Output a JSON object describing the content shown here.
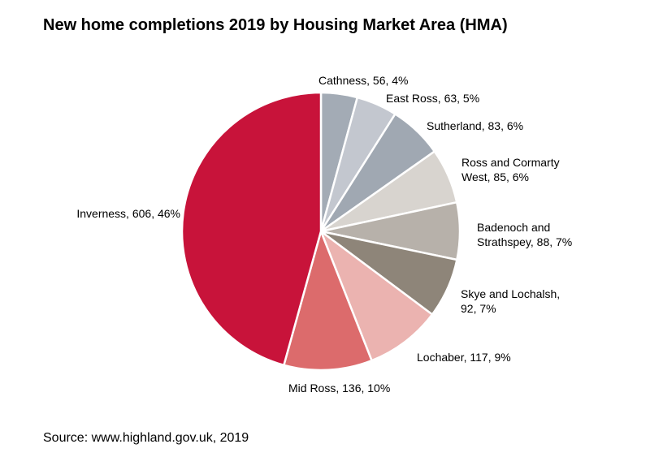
{
  "title": "New home completions 2019 by Housing Market Area (HMA)",
  "source": "Source: www.highland.gov.uk, 2019",
  "chart_data": {
    "type": "pie",
    "title": "New home completions 2019 by Housing Market Area (HMA)",
    "slices": [
      {
        "label": "Cathness",
        "value": 56,
        "percent": "4%",
        "color": "#a3abb5",
        "text": [
          "Cathness, 56, 4%"
        ]
      },
      {
        "label": "East Ross",
        "value": 63,
        "percent": "5%",
        "color": "#c3c7cf",
        "text": [
          "East Ross, 63, 5%"
        ]
      },
      {
        "label": "Sutherland",
        "value": 83,
        "percent": "6%",
        "color": "#a0a8b2",
        "text": [
          "Sutherland, 83, 6%"
        ]
      },
      {
        "label": "Ross and Cormarty West",
        "value": 85,
        "percent": "6%",
        "color": "#d8d4cf",
        "text": [
          "Ross and Cormarty",
          "West, 85, 6%"
        ]
      },
      {
        "label": "Badenoch and Strathspey",
        "value": 88,
        "percent": "7%",
        "color": "#b7b1aa",
        "text": [
          "Badenoch and",
          "Strathspey, 88, 7%"
        ]
      },
      {
        "label": "Skye and Lochalsh",
        "value": 92,
        "percent": "7%",
        "color": "#8e8579",
        "text": [
          "Skye and Lochalsh,",
          "92, 7%"
        ]
      },
      {
        "label": "Lochaber",
        "value": 117,
        "percent": "9%",
        "color": "#ebb3b0",
        "text": [
          "Lochaber, 117, 9%"
        ]
      },
      {
        "label": "Mid Ross",
        "value": 136,
        "percent": "10%",
        "color": "#dc6b6c",
        "text": [
          "Mid Ross, 136, 10%"
        ]
      },
      {
        "label": "Inverness",
        "value": 606,
        "percent": "46%",
        "color": "#c8133a",
        "text": [
          "Inverness, 606, 46%"
        ]
      }
    ]
  }
}
